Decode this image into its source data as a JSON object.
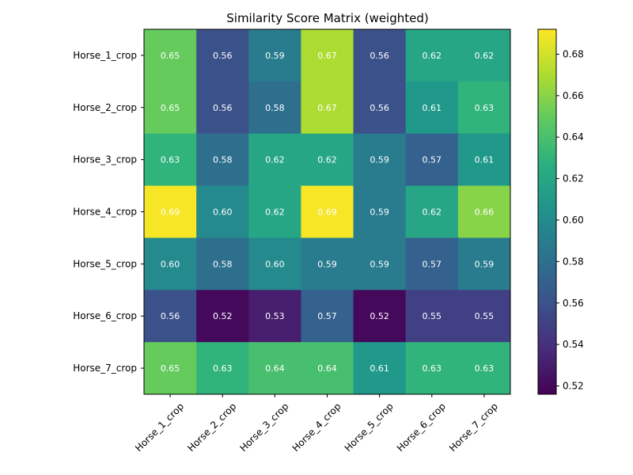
{
  "chart_data": {
    "type": "heatmap",
    "title": "Similarity Score Matrix (weighted)",
    "rows": [
      "Horse_1_crop",
      "Horse_2_crop",
      "Horse_3_crop",
      "Horse_4_crop",
      "Horse_5_crop",
      "Horse_6_crop",
      "Horse_7_crop"
    ],
    "columns": [
      "Horse_1_crop",
      "Horse_2_crop",
      "Horse_3_crop",
      "Horse_4_crop",
      "Horse_5_crop",
      "Horse_6_crop",
      "Horse_7_crop"
    ],
    "values": [
      [
        0.65,
        0.56,
        0.59,
        0.67,
        0.56,
        0.62,
        0.62
      ],
      [
        0.65,
        0.56,
        0.58,
        0.67,
        0.56,
        0.61,
        0.63
      ],
      [
        0.63,
        0.58,
        0.62,
        0.62,
        0.59,
        0.57,
        0.61
      ],
      [
        0.69,
        0.6,
        0.62,
        0.69,
        0.59,
        0.62,
        0.66
      ],
      [
        0.6,
        0.58,
        0.6,
        0.59,
        0.59,
        0.57,
        0.59
      ],
      [
        0.56,
        0.52,
        0.53,
        0.57,
        0.52,
        0.55,
        0.55
      ],
      [
        0.65,
        0.63,
        0.64,
        0.64,
        0.61,
        0.63,
        0.63
      ]
    ],
    "value_labels": [
      [
        "0.65",
        "0.56",
        "0.59",
        "0.67",
        "0.56",
        "0.62",
        "0.62"
      ],
      [
        "0.65",
        "0.56",
        "0.58",
        "0.67",
        "0.56",
        "0.61",
        "0.63"
      ],
      [
        "0.63",
        "0.58",
        "0.62",
        "0.62",
        "0.59",
        "0.57",
        "0.61"
      ],
      [
        "0.69",
        "0.60",
        "0.62",
        "0.69",
        "0.59",
        "0.62",
        "0.66"
      ],
      [
        "0.60",
        "0.58",
        "0.60",
        "0.59",
        "0.59",
        "0.57",
        "0.59"
      ],
      [
        "0.56",
        "0.52",
        "0.53",
        "0.57",
        "0.52",
        "0.55",
        "0.55"
      ],
      [
        "0.65",
        "0.63",
        "0.64",
        "0.64",
        "0.61",
        "0.63",
        "0.63"
      ]
    ],
    "colormap": "viridis",
    "colorbar": {
      "range": [
        0.516,
        0.692
      ],
      "ticks": [
        0.52,
        0.54,
        0.56,
        0.58,
        0.6,
        0.62,
        0.64,
        0.66,
        0.68
      ],
      "tick_labels": [
        "0.52",
        "0.54",
        "0.56",
        "0.58",
        "0.60",
        "0.62",
        "0.64",
        "0.66",
        "0.68"
      ]
    },
    "x_tick_rotation": 45,
    "grid": false,
    "xlabel": "",
    "ylabel": ""
  }
}
